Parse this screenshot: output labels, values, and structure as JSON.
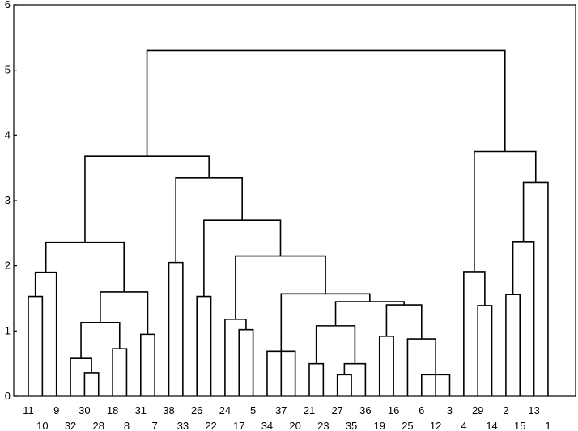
{
  "chart_data": {
    "type": "dendrogram",
    "y_axis": {
      "range": [
        0,
        6
      ],
      "ticks": [
        0,
        1,
        2,
        3,
        4,
        5,
        6
      ]
    },
    "leaf_order": [
      11,
      10,
      9,
      32,
      30,
      28,
      18,
      8,
      31,
      7,
      38,
      33,
      26,
      22,
      24,
      17,
      5,
      34,
      37,
      20,
      21,
      23,
      27,
      35,
      36,
      19,
      16,
      25,
      6,
      12,
      3,
      4,
      29,
      14,
      2,
      15,
      13,
      1
    ],
    "merges": [
      {
        "id": "A",
        "left": 11,
        "right": 10,
        "height": 1.53
      },
      {
        "id": "B",
        "left": "A",
        "right": 9,
        "height": 1.9
      },
      {
        "id": "C",
        "left": 30,
        "right": 28,
        "height": 0.36
      },
      {
        "id": "D",
        "left": 32,
        "right": "C",
        "height": 0.58
      },
      {
        "id": "E",
        "left": 18,
        "right": 8,
        "height": 0.73
      },
      {
        "id": "F",
        "left": "D",
        "right": "E",
        "height": 1.13
      },
      {
        "id": "G",
        "left": 31,
        "right": 7,
        "height": 0.95
      },
      {
        "id": "H",
        "left": "F",
        "right": "G",
        "height": 1.6
      },
      {
        "id": "I",
        "left": "B",
        "right": "H",
        "height": 2.36
      },
      {
        "id": "J",
        "left": 38,
        "right": 33,
        "height": 2.05
      },
      {
        "id": "K",
        "left": 26,
        "right": 22,
        "height": 1.53
      },
      {
        "id": "L",
        "left": 5,
        "right": 17,
        "height": 1.02
      },
      {
        "id": "M",
        "left": 24,
        "right": "L",
        "height": 1.18
      },
      {
        "id": "N",
        "left": 20,
        "right": 34,
        "height": 0.69
      },
      {
        "id": "O",
        "left": 37,
        "right": "N",
        "height": 0.82
      },
      {
        "id": "P",
        "left": 27,
        "right": 35,
        "height": 0.33
      },
      {
        "id": "Q",
        "left": 36,
        "right": "P",
        "height": 0.5
      },
      {
        "id": "R",
        "left": 23,
        "right": 21,
        "height": 0.5
      },
      {
        "id": "S",
        "left": "R",
        "right": "Q",
        "height": 1.08
      },
      {
        "id": "T",
        "left": 19,
        "right": 16,
        "height": 0.92
      },
      {
        "id": "U",
        "left": 6,
        "right": 3,
        "height": 0.33
      },
      {
        "id": "V",
        "left": 12,
        "right": "U",
        "height": 0.58
      },
      {
        "id": "W",
        "left": 25,
        "right": "V",
        "height": 0.88
      },
      {
        "id": "X",
        "left": "T",
        "right": "W",
        "height": 1.4
      },
      {
        "id": "Y",
        "left": "S",
        "right": "X",
        "height": 1.45
      },
      {
        "id": "Z",
        "left": "O",
        "right": "Y",
        "height": 1.57
      },
      {
        "id": "AA",
        "left": "M",
        "right": "Z",
        "height": 2.15
      },
      {
        "id": "AB",
        "left": "K",
        "right": "AA",
        "height": 2.7
      },
      {
        "id": "AC",
        "left": "J",
        "right": "AB",
        "height": 3.35
      },
      {
        "id": "AD",
        "left": "I",
        "right": "AC",
        "height": 3.68
      },
      {
        "id": "AE",
        "left": 29,
        "right": 14,
        "height": 1.39
      },
      {
        "id": "AF",
        "left": 4,
        "right": "AE",
        "height": 1.91
      },
      {
        "id": "AG",
        "left": 2,
        "right": 15,
        "height": 1.56
      },
      {
        "id": "AH",
        "left": "AG",
        "right": 13,
        "height": 2.37
      },
      {
        "id": "AI",
        "left": "AH",
        "right": 1,
        "height": 3.28
      },
      {
        "id": "AJ",
        "left": "AF",
        "right": "AI",
        "height": 3.75
      },
      {
        "id": "AK",
        "left": "AD",
        "right": "AJ",
        "height": 5.3
      }
    ]
  }
}
